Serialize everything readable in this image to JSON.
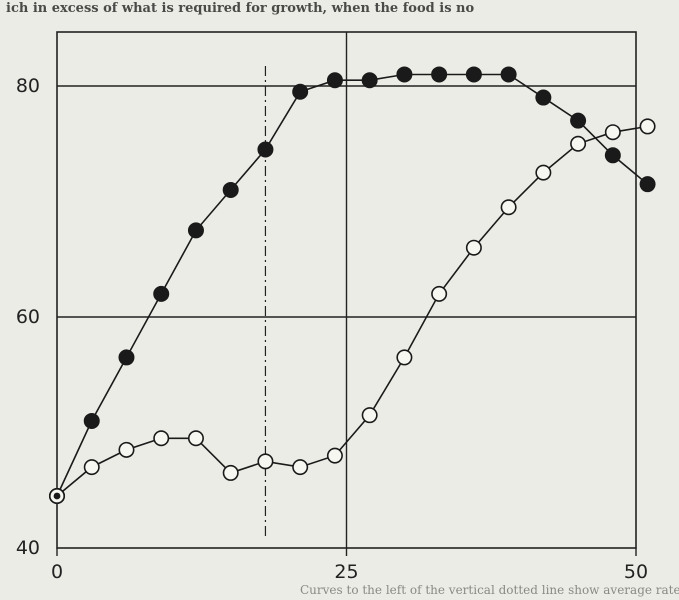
{
  "page": {
    "header_text": "ich in excess of what is required for growth, when the food is no",
    "footer_text": "Curves to the left of the vertical dotted line show average rate of growth"
  },
  "chart_data": {
    "type": "line",
    "title": "",
    "xlabel": "",
    "ylabel": "",
    "xlim": [
      0,
      50
    ],
    "ylim": [
      40,
      85
    ],
    "x_ticks": [
      0,
      25,
      50
    ],
    "x_tick_labels": [
      "0",
      "25",
      "50"
    ],
    "y_ticks": [
      40,
      60,
      80
    ],
    "y_tick_labels": [
      "40",
      "60",
      "80"
    ],
    "grid": true,
    "legend": "none",
    "reference_line": {
      "x": 18,
      "style": "dash-dot"
    },
    "series": [
      {
        "marker": "filled",
        "x": [
          0,
          3,
          6,
          9,
          12,
          15,
          18,
          21,
          24,
          27,
          30,
          33,
          36,
          39,
          42,
          45,
          48,
          51
        ],
        "y": [
          44.5,
          51,
          56.5,
          62,
          67.5,
          71,
          74.5,
          79.5,
          80.5,
          80.5,
          81,
          81,
          81,
          81,
          79,
          77,
          74,
          71.5
        ]
      },
      {
        "marker": "open",
        "x": [
          0,
          3,
          6,
          9,
          12,
          15,
          18,
          21,
          24,
          27,
          30,
          33,
          36,
          39,
          42,
          45,
          48,
          51
        ],
        "y": [
          44.5,
          47,
          48.5,
          49.5,
          49.5,
          46.5,
          47.5,
          47,
          48,
          51.5,
          56.5,
          62,
          66,
          69.5,
          72.5,
          75,
          76,
          76.5
        ]
      }
    ]
  }
}
